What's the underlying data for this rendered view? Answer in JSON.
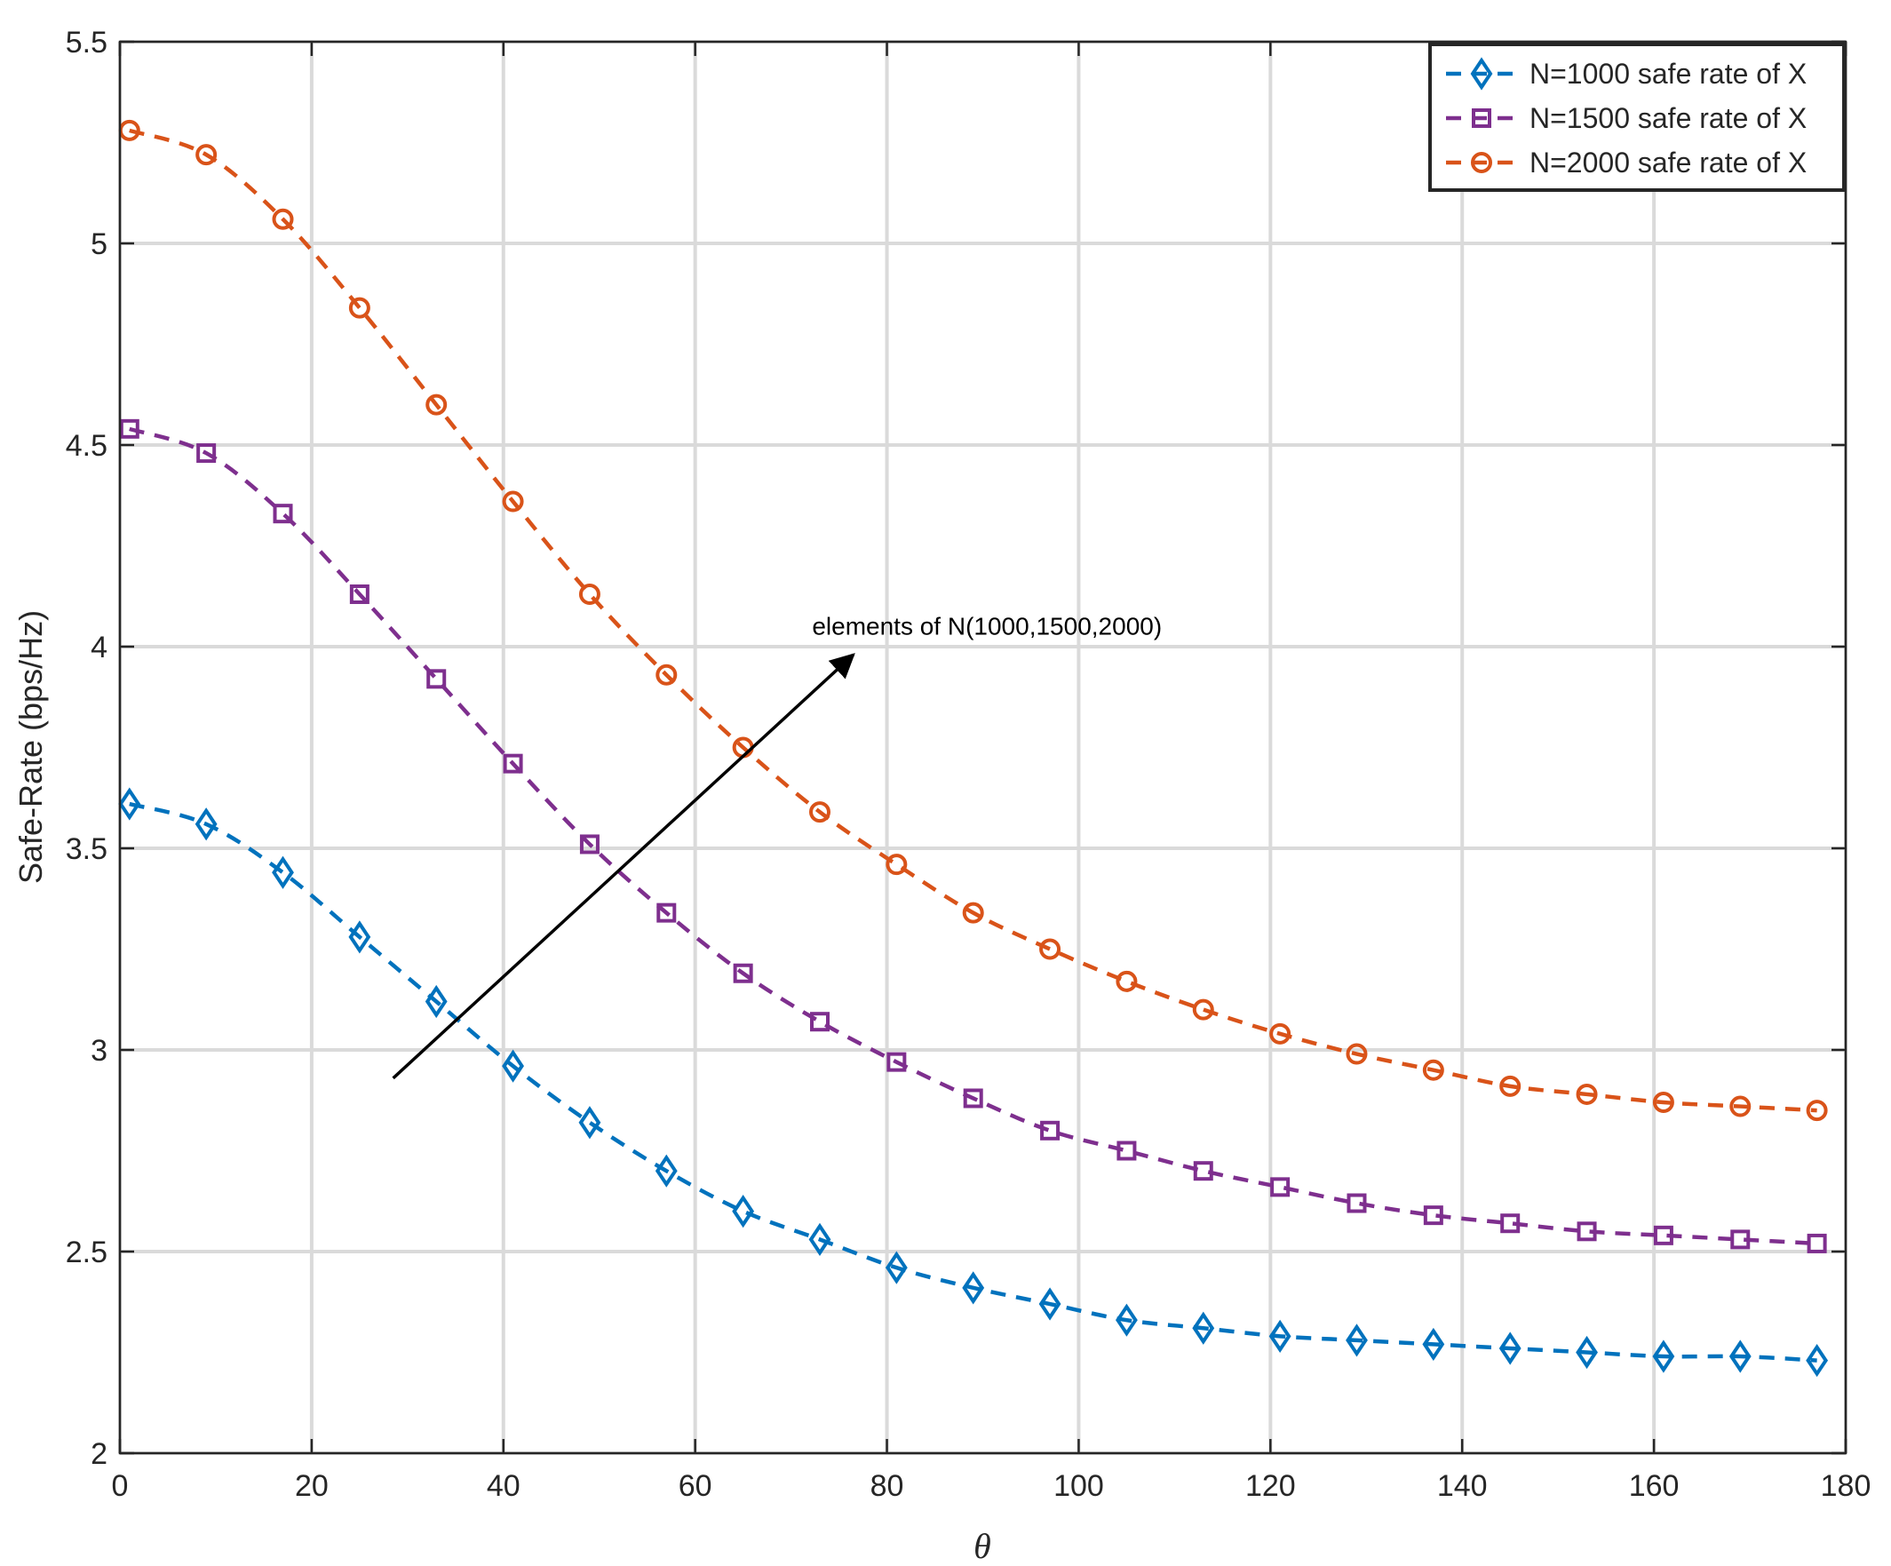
{
  "chart_data": {
    "type": "line",
    "title": "",
    "xlabel": "θ",
    "ylabel": "Safe-Rate (bps/Hz)",
    "xlim": [
      0,
      180
    ],
    "ylim": [
      2,
      5.5
    ],
    "xticks": [
      0,
      20,
      40,
      60,
      80,
      100,
      120,
      140,
      160,
      180
    ],
    "yticks": [
      2,
      2.5,
      3,
      3.5,
      4,
      4.5,
      5,
      5.5
    ],
    "xtick_labels": [
      "0",
      "20",
      "40",
      "60",
      "80",
      "100",
      "120",
      "140",
      "160",
      "180"
    ],
    "ytick_labels": [
      "2",
      "2.5",
      "3",
      "3.5",
      "4",
      "4.5",
      "5",
      "5.5"
    ],
    "grid": true,
    "legend_position": "top-right",
    "x": [
      1,
      9,
      17,
      25,
      33,
      41,
      49,
      57,
      65,
      73,
      81,
      89,
      97,
      105,
      113,
      121,
      129,
      137,
      145,
      153,
      161,
      169,
      177
    ],
    "series": [
      {
        "name": "N=1000 safe rate of X",
        "color": "#0072BD",
        "marker": "diamond",
        "linestyle": "dashed",
        "values": [
          3.61,
          3.56,
          3.44,
          3.28,
          3.12,
          2.96,
          2.82,
          2.7,
          2.6,
          2.53,
          2.46,
          2.41,
          2.37,
          2.33,
          2.31,
          2.29,
          2.28,
          2.27,
          2.26,
          2.25,
          2.24,
          2.24,
          2.23
        ]
      },
      {
        "name": "N=1500 safe rate of X",
        "color": "#7E2F8E",
        "marker": "square",
        "linestyle": "dashed",
        "values": [
          4.54,
          4.48,
          4.33,
          4.13,
          3.92,
          3.71,
          3.51,
          3.34,
          3.19,
          3.07,
          2.97,
          2.88,
          2.8,
          2.75,
          2.7,
          2.66,
          2.62,
          2.59,
          2.57,
          2.55,
          2.54,
          2.53,
          2.52
        ]
      },
      {
        "name": "N=2000 safe rate of X",
        "color": "#D95319",
        "marker": "circle",
        "linestyle": "dashed",
        "values": [
          5.28,
          5.22,
          5.06,
          4.84,
          4.6,
          4.36,
          4.13,
          3.93,
          3.75,
          3.59,
          3.46,
          3.34,
          3.25,
          3.17,
          3.1,
          3.04,
          2.99,
          2.95,
          2.91,
          2.89,
          2.87,
          2.86,
          2.85
        ]
      }
    ],
    "annotations": [
      {
        "text": "elements of N(1000,1500,2000)",
        "arrow_from": [
          28.5,
          2.93
        ],
        "arrow_to": [
          76.5,
          3.98
        ]
      }
    ]
  }
}
